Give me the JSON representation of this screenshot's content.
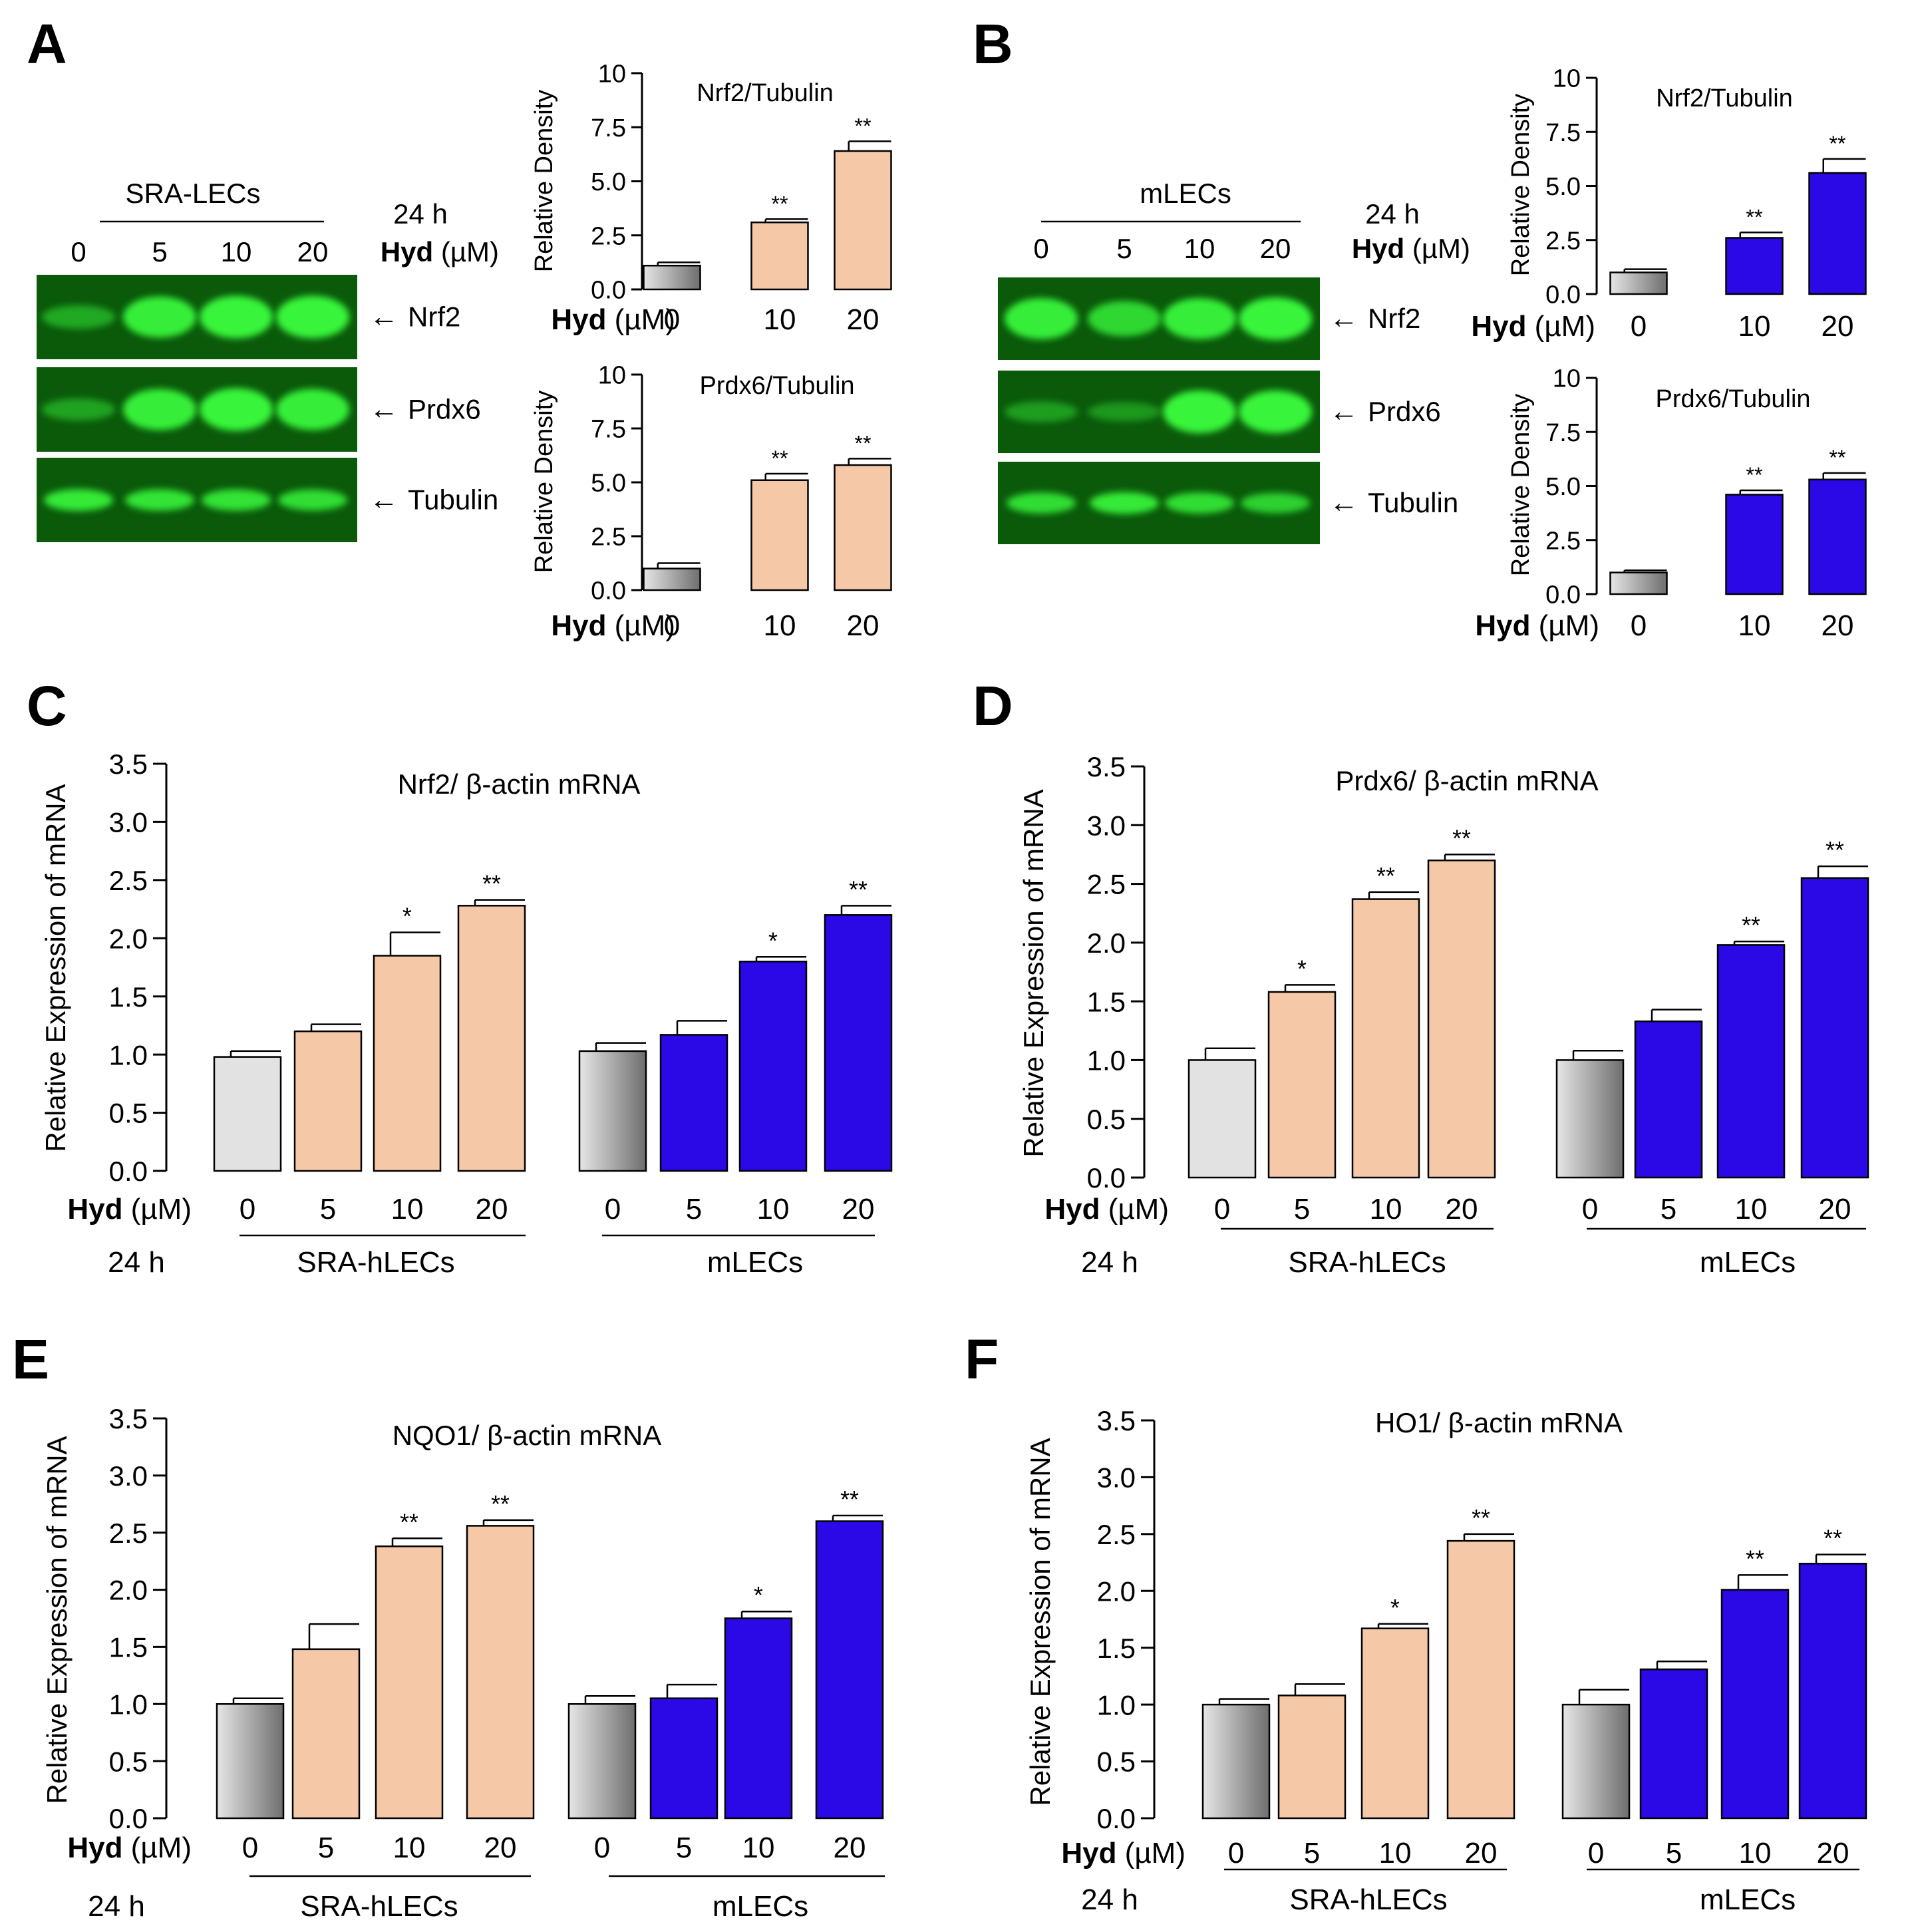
{
  "colors": {
    "control_light": "#e2e2e2",
    "control_dark": "#7a7a7a",
    "salmon": "#f5c8a8",
    "blue": "#2b08e6",
    "band": "#39f53a",
    "blot_bg": "#0a5a0a"
  },
  "labels": {
    "hyd_bold": "Hyd",
    "hyd_unit": "(µM)",
    "time": "24 h",
    "y_density": "Relative Density",
    "y_mrna": "Relative Expression of mRNA",
    "band_nrf2": "Nrf2",
    "band_prdx6": "Prdx6",
    "band_tubulin": "Tubulin",
    "arrow": "←"
  },
  "blots": [
    {
      "panel": "A",
      "cell": "SRA-LECs",
      "lanes": [
        "0",
        "5",
        "10",
        "20"
      ],
      "bands": [
        {
          "name": "Nrf2",
          "intensity": [
            0.35,
            0.95,
            1.0,
            1.0
          ]
        },
        {
          "name": "Prdx6",
          "intensity": [
            0.3,
            0.95,
            1.0,
            0.95
          ]
        },
        {
          "name": "Tubulin",
          "intensity": [
            0.9,
            0.85,
            0.85,
            0.8
          ]
        }
      ]
    },
    {
      "panel": "B",
      "cell": "mLECs",
      "lanes": [
        "0",
        "5",
        "10",
        "20"
      ],
      "bands": [
        {
          "name": "Nrf2",
          "intensity": [
            0.95,
            0.75,
            0.95,
            1.0
          ]
        },
        {
          "name": "Prdx6",
          "intensity": [
            0.25,
            0.2,
            1.0,
            1.0
          ]
        },
        {
          "name": "Tubulin",
          "intensity": [
            0.8,
            0.9,
            0.8,
            0.7
          ]
        }
      ]
    }
  ],
  "chart_data": [
    {
      "id": "A1",
      "panel": "A",
      "type": "bar",
      "title": "Nrf2/Tubulin",
      "ylabel": "Relative Density",
      "xlabel": "Hyd (µM)",
      "ylim": [
        0,
        10
      ],
      "yticks": [
        "0.0",
        "2.5",
        "5.0",
        "7.5",
        "10"
      ],
      "categories": [
        "0",
        "10",
        "20"
      ],
      "values": [
        1.1,
        3.1,
        6.4
      ],
      "errors": [
        0.15,
        0.15,
        0.45
      ],
      "sig": [
        "",
        "**",
        "**"
      ],
      "fill": [
        "control",
        "salmon",
        "salmon"
      ]
    },
    {
      "id": "A2",
      "panel": "A",
      "type": "bar",
      "title": "Prdx6/Tubulin",
      "ylabel": "Relative Density",
      "xlabel": "Hyd (µM)",
      "ylim": [
        0,
        10
      ],
      "yticks": [
        "0.0",
        "2.5",
        "5.0",
        "7.5",
        "10"
      ],
      "categories": [
        "0",
        "10",
        "20"
      ],
      "values": [
        1.0,
        5.1,
        5.8
      ],
      "errors": [
        0.25,
        0.3,
        0.3
      ],
      "sig": [
        "",
        "**",
        "**"
      ],
      "fill": [
        "control",
        "salmon",
        "salmon"
      ]
    },
    {
      "id": "B1",
      "panel": "B",
      "type": "bar",
      "title": "Nrf2/Tubulin",
      "ylabel": "Relative Density",
      "xlabel": "Hyd (µM)",
      "ylim": [
        0,
        10
      ],
      "yticks": [
        "0.0",
        "2.5",
        "5.0",
        "7.5",
        "10"
      ],
      "categories": [
        "0",
        "10",
        "20"
      ],
      "values": [
        1.0,
        2.6,
        5.6
      ],
      "errors": [
        0.15,
        0.25,
        0.65
      ],
      "sig": [
        "",
        "**",
        "**"
      ],
      "fill": [
        "control",
        "blue",
        "blue"
      ]
    },
    {
      "id": "B2",
      "panel": "B",
      "type": "bar",
      "title": "Prdx6/Tubulin",
      "ylabel": "Relative Density",
      "xlabel": "Hyd (µM)",
      "ylim": [
        0,
        10
      ],
      "yticks": [
        "0.0",
        "2.5",
        "5.0",
        "7.5",
        "10"
      ],
      "categories": [
        "0",
        "10",
        "20"
      ],
      "values": [
        1.0,
        4.6,
        5.3
      ],
      "errors": [
        0.1,
        0.2,
        0.3
      ],
      "sig": [
        "",
        "**",
        "**"
      ],
      "fill": [
        "control",
        "blue",
        "blue"
      ]
    },
    {
      "id": "C",
      "panel": "C",
      "type": "bar",
      "title": "Nrf2/ β-actin mRNA",
      "ylabel": "Relative Expression of mRNA",
      "xlabel": "Hyd (µM)",
      "ylim": [
        0,
        3.5
      ],
      "yticks": [
        "0.0",
        "0.5",
        "1.0",
        "1.5",
        "2.0",
        "2.5",
        "3.0",
        "3.5"
      ],
      "groups": [
        "SRA-hLECs",
        "mLECs"
      ],
      "categories": [
        "0",
        "5",
        "10",
        "20",
        "0",
        "5",
        "10",
        "20"
      ],
      "values": [
        0.98,
        1.2,
        1.85,
        2.28,
        1.03,
        1.17,
        1.8,
        2.2
      ],
      "errors": [
        0.05,
        0.06,
        0.2,
        0.05,
        0.07,
        0.12,
        0.04,
        0.08
      ],
      "sig": [
        "",
        "",
        "*",
        "**",
        "",
        "",
        "*",
        "**"
      ],
      "fill": [
        "light",
        "salmon",
        "salmon",
        "salmon",
        "control",
        "blue",
        "blue",
        "blue"
      ]
    },
    {
      "id": "D",
      "panel": "D",
      "type": "bar",
      "title": "Prdx6/ β-actin mRNA",
      "ylabel": "Relative Expression of mRNA",
      "xlabel": "Hyd (µM)",
      "ylim": [
        0,
        3.5
      ],
      "yticks": [
        "0.0",
        "0.5",
        "1.0",
        "1.5",
        "2.0",
        "2.5",
        "3.0",
        "3.5"
      ],
      "groups": [
        "SRA-hLECs",
        "mLECs"
      ],
      "categories": [
        "0",
        "5",
        "10",
        "20",
        "0",
        "5",
        "10",
        "20"
      ],
      "values": [
        1.0,
        1.58,
        2.37,
        2.7,
        1.0,
        1.33,
        1.98,
        2.55
      ],
      "errors": [
        0.1,
        0.06,
        0.06,
        0.05,
        0.08,
        0.1,
        0.03,
        0.1
      ],
      "sig": [
        "",
        "*",
        "**",
        "**",
        "",
        "",
        "**",
        "**"
      ],
      "fill": [
        "light",
        "salmon",
        "salmon",
        "salmon",
        "control",
        "blue",
        "blue",
        "blue"
      ]
    },
    {
      "id": "E",
      "panel": "E",
      "type": "bar",
      "title": "NQO1/ β-actin mRNA",
      "ylabel": "Relative Expression of mRNA",
      "xlabel": "Hyd (µM)",
      "ylim": [
        0,
        3.5
      ],
      "yticks": [
        "0.0",
        "0.5",
        "1.0",
        "1.5",
        "2.0",
        "2.5",
        "3.0",
        "3.5"
      ],
      "groups": [
        "SRA-hLECs",
        "mLECs"
      ],
      "categories": [
        "0",
        "5",
        "10",
        "20",
        "0",
        "5",
        "10",
        "20"
      ],
      "values": [
        1.0,
        1.48,
        2.38,
        2.56,
        1.0,
        1.05,
        1.75,
        2.6
      ],
      "errors": [
        0.05,
        0.22,
        0.07,
        0.05,
        0.07,
        0.12,
        0.06,
        0.05
      ],
      "sig": [
        "",
        "",
        "**",
        "**",
        "",
        "",
        "*",
        "**"
      ],
      "fill": [
        "control",
        "salmon",
        "salmon",
        "salmon",
        "control",
        "blue",
        "blue",
        "blue"
      ]
    },
    {
      "id": "F",
      "panel": "F",
      "type": "bar",
      "title": "HO1/ β-actin mRNA",
      "ylabel": "Relative Expression of mRNA",
      "xlabel": "Hyd (µM)",
      "ylim": [
        0,
        3.5
      ],
      "yticks": [
        "0.0",
        "0.5",
        "1.0",
        "1.5",
        "2.0",
        "2.5",
        "3.0",
        "3.5"
      ],
      "groups": [
        "SRA-hLECs",
        "mLECs"
      ],
      "categories": [
        "0",
        "5",
        "10",
        "20",
        "0",
        "5",
        "10",
        "20"
      ],
      "values": [
        1.0,
        1.08,
        1.67,
        2.44,
        1.0,
        1.31,
        2.01,
        2.24
      ],
      "errors": [
        0.05,
        0.1,
        0.04,
        0.06,
        0.13,
        0.07,
        0.13,
        0.08
      ],
      "sig": [
        "",
        "",
        "*",
        "**",
        "",
        "",
        "**",
        "**"
      ],
      "fill": [
        "control",
        "salmon",
        "salmon",
        "salmon",
        "control",
        "blue",
        "blue",
        "blue"
      ]
    }
  ]
}
